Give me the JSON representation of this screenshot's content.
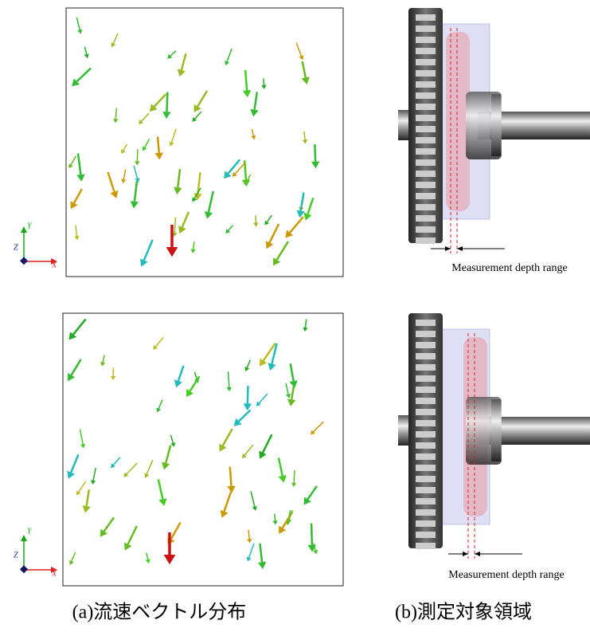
{
  "figure_a": {
    "panels": [
      {
        "axes": {
          "y": "Y",
          "z": "Z",
          "x": "X"
        }
      },
      {
        "axes": {
          "y": "Y",
          "z": "Z",
          "x": "X"
        }
      }
    ]
  },
  "figure_b": {
    "panels": [
      {
        "depth_label": "Measurement depth range"
      },
      {
        "depth_label": "Measurement depth range"
      }
    ]
  },
  "captions": {
    "a": "(a)流速ベクトル分布",
    "b": "(b)測定対象領域"
  }
}
